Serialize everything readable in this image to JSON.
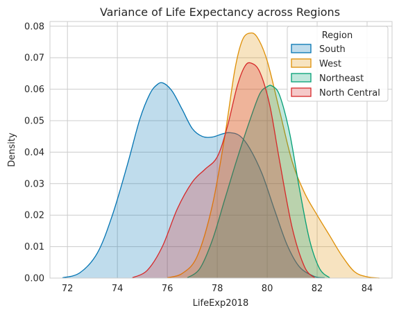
{
  "chart_data": {
    "type": "area",
    "title": "Variance of Life Expectancy across Regions",
    "xlabel": "LifeExp2018",
    "ylabel": "Density",
    "xlim": [
      71.3,
      85.0
    ],
    "ylim": [
      0,
      0.0815
    ],
    "xticks": [
      72,
      74,
      76,
      78,
      80,
      82,
      84
    ],
    "xtick_labels": [
      "72",
      "74",
      "76",
      "78",
      "80",
      "82",
      "84"
    ],
    "yticks": [
      0,
      0.01,
      0.02,
      0.03,
      0.04,
      0.05,
      0.06,
      0.07,
      0.08
    ],
    "ytick_labels": [
      "0.00",
      "0.01",
      "0.02",
      "0.03",
      "0.04",
      "0.05",
      "0.06",
      "0.07",
      "0.08"
    ],
    "grid": true,
    "legend": {
      "title": "Region",
      "placement": "top-right"
    },
    "series": [
      {
        "name": "South",
        "color": "#0173b2",
        "x": [
          71.8,
          72.5,
          73.2,
          73.8,
          74.4,
          74.9,
          75.3,
          75.6,
          75.85,
          76.2,
          76.6,
          77.0,
          77.4,
          77.8,
          78.2,
          78.5,
          78.9,
          79.3,
          79.8,
          80.3,
          80.8,
          81.3,
          81.9,
          82.3
        ],
        "y": [
          0.0001,
          0.0017,
          0.008,
          0.02,
          0.036,
          0.0505,
          0.0585,
          0.0615,
          0.0619,
          0.0593,
          0.0535,
          0.0475,
          0.045,
          0.0448,
          0.0458,
          0.0462,
          0.0452,
          0.0412,
          0.033,
          0.0215,
          0.0105,
          0.0035,
          0.0005,
          0.0001
        ]
      },
      {
        "name": "West",
        "color": "#de8f05",
        "x": [
          76.0,
          76.6,
          77.2,
          77.8,
          78.3,
          78.7,
          79.0,
          79.3,
          79.6,
          80.0,
          80.5,
          81.0,
          81.5,
          82.0,
          82.5,
          83.0,
          83.5,
          84.0,
          84.5
        ],
        "y": [
          0.0001,
          0.0015,
          0.007,
          0.023,
          0.045,
          0.066,
          0.0755,
          0.0778,
          0.0765,
          0.069,
          0.053,
          0.037,
          0.027,
          0.02,
          0.0135,
          0.007,
          0.002,
          0.0004,
          0.0
        ]
      },
      {
        "name": "Northeast",
        "color": "#029e73",
        "x": [
          76.8,
          77.3,
          77.8,
          78.3,
          78.8,
          79.3,
          79.7,
          80.0,
          80.2,
          80.5,
          80.9,
          81.3,
          81.7,
          82.1,
          82.5
        ],
        "y": [
          0.0001,
          0.003,
          0.012,
          0.025,
          0.038,
          0.05,
          0.0585,
          0.0608,
          0.061,
          0.058,
          0.046,
          0.028,
          0.012,
          0.003,
          0.0001
        ]
      },
      {
        "name": "North Central",
        "color": "#d62728",
        "x": [
          74.6,
          75.2,
          75.8,
          76.4,
          77.0,
          77.5,
          78.0,
          78.4,
          78.8,
          79.1,
          79.35,
          79.7,
          80.1,
          80.5,
          81.0,
          81.5,
          81.9
        ],
        "y": [
          0.0001,
          0.0025,
          0.01,
          0.022,
          0.0305,
          0.0345,
          0.0385,
          0.048,
          0.061,
          0.0672,
          0.0683,
          0.0655,
          0.055,
          0.037,
          0.016,
          0.0035,
          0.0001
        ]
      }
    ]
  }
}
